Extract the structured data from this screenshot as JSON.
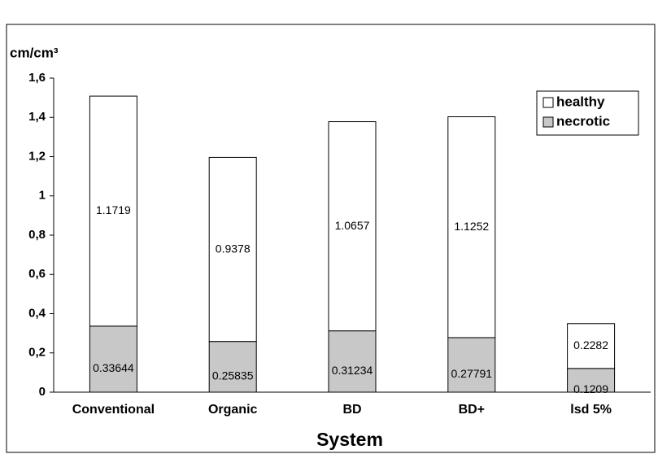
{
  "chart_data": {
    "type": "stacked_bar",
    "y_label": "cm/cm³",
    "x_label": "System",
    "categories": [
      "Conventional",
      "Organic",
      "BD",
      "BD+",
      "lsd 5%"
    ],
    "series": [
      {
        "name": "necrotic",
        "color": "#c8c8c8",
        "values": [
          0.33644,
          0.25835,
          0.31234,
          0.27791,
          0.1209
        ]
      },
      {
        "name": "healthy",
        "color": "#ffffff",
        "values": [
          1.1719,
          0.9378,
          1.0657,
          1.1252,
          0.2282
        ]
      }
    ],
    "ylim": [
      0,
      1.6
    ],
    "yticks": [
      0,
      {
        "value": 0.2,
        "label": "0,2"
      },
      {
        "value": 0.4,
        "label": "0,4"
      },
      {
        "value": 0.6,
        "label": "0,6"
      },
      {
        "value": 0.8,
        "label": "0,8"
      },
      1,
      {
        "value": 1.2,
        "label": "1,2"
      },
      {
        "value": 1.4,
        "label": "1,4"
      },
      {
        "value": 1.6,
        "label": "1,6"
      }
    ],
    "legend": "top-right"
  }
}
